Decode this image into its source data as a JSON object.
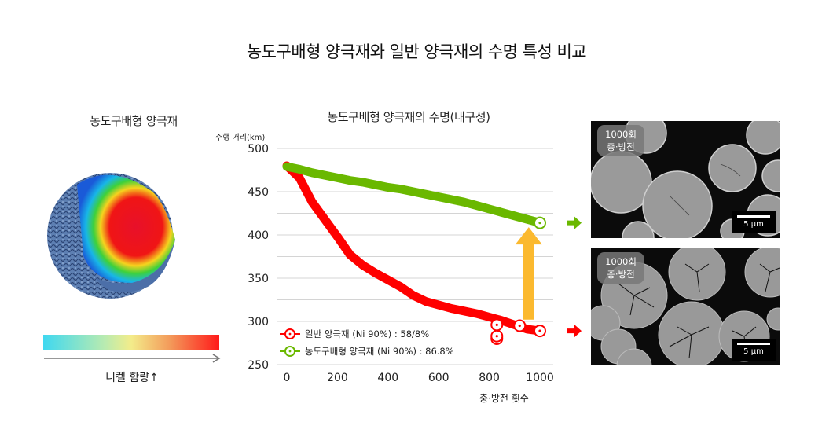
{
  "title": "농도구배형 양극재와 일반 양극재의 수명 특성 비교",
  "left_panel": {
    "title": "농도구배형 양극재",
    "colorbar_colors": [
      "#3fd8f0",
      "#b9ebb0",
      "#f3ec8a",
      "#f39a5a",
      "#ff1a1a"
    ],
    "arrow_label": "니켈 함량↑"
  },
  "chart_data": {
    "type": "line",
    "title": "농도구배형 양극재의 수명(내구성)",
    "xlabel": "충·방전 횟수",
    "ylabel": "주행 거리(km)",
    "xlim": [
      0,
      1000
    ],
    "ylim": [
      250,
      500
    ],
    "x_ticks": [
      0,
      200,
      400,
      600,
      800,
      1000
    ],
    "y_ticks": [
      250,
      300,
      350,
      400,
      450,
      500
    ],
    "grid": "horizontal, every 25",
    "legend_position": "lower left",
    "x": [
      0,
      50,
      100,
      150,
      200,
      250,
      300,
      350,
      400,
      450,
      500,
      550,
      600,
      650,
      700,
      750,
      800,
      850,
      900,
      950,
      1000
    ],
    "series": [
      {
        "name": "일반 양극재 (Ni 90%) : 58/8%",
        "color": "#ff0000",
        "values": [
          480,
          466,
          438,
          418,
          398,
          377,
          365,
          356,
          348,
          340,
          330,
          323,
          319,
          315,
          312,
          309,
          305,
          301,
          296,
          291,
          289
        ]
      },
      {
        "name": "농도구배형 양극재 (Ni 90%) : 86.8%",
        "color": "#6ab800",
        "values": [
          479,
          476,
          472,
          469,
          466,
          463,
          461,
          458,
          455,
          453,
          450,
          447,
          444,
          441,
          438,
          434,
          430,
          426,
          422,
          418,
          414
        ]
      }
    ],
    "annotations": [
      {
        "type": "arrow",
        "direction": "up",
        "color": "#fbb92f",
        "x": 990,
        "from": 302,
        "to": 409
      },
      {
        "type": "arrow",
        "direction": "right",
        "color": "#6ab800",
        "y": 414
      },
      {
        "type": "arrow",
        "direction": "right",
        "color": "#ff0000",
        "y": 289
      }
    ]
  },
  "sem_images": [
    {
      "badge_line1": "1000회",
      "badge_line2": "충·방전",
      "scale": "5 μm",
      "condition": "intact"
    },
    {
      "badge_line1": "1000회",
      "badge_line2": "충·방전",
      "scale": "5 μm",
      "condition": "cracked"
    }
  ]
}
